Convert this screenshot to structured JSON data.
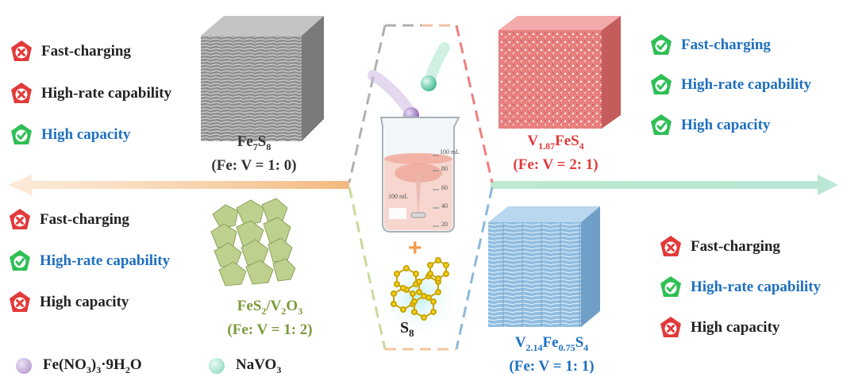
{
  "colors": {
    "fe7s8": "#9a9a9a",
    "v187": "#e97a7a",
    "fes2": "#b9cc8a",
    "v214": "#8db9dc",
    "positive_text": "#1e6fc0",
    "negative_text": "#222222",
    "check_badge": "#2fbf55",
    "cross_badge": "#e23a3a"
  },
  "panels": {
    "top_left": {
      "features": [
        {
          "icon": "cross-badge-icon",
          "text": "Fast-charging"
        },
        {
          "icon": "cross-badge-icon",
          "text": "High-rate capability"
        },
        {
          "icon": "check-badge-icon",
          "text": "High capacity"
        }
      ],
      "formula": [
        "Fe",
        "7",
        "S",
        "8"
      ],
      "ratio": "(Fe: V = 1: 0)"
    },
    "top_right": {
      "features": [
        {
          "icon": "check-badge-icon",
          "text": "Fast-charging"
        },
        {
          "icon": "check-badge-icon",
          "text": "High-rate capability"
        },
        {
          "icon": "check-badge-icon",
          "text": "High capacity"
        }
      ],
      "formula": [
        "V",
        "1.87",
        "FeS",
        "4"
      ],
      "ratio": "(Fe: V = 2: 1)"
    },
    "bottom_left": {
      "features": [
        {
          "icon": "cross-badge-icon",
          "text": "Fast-charging"
        },
        {
          "icon": "check-badge-icon",
          "text": "High-rate capability"
        },
        {
          "icon": "cross-badge-icon",
          "text": "High capacity"
        }
      ],
      "formula": [
        "FeS",
        "2",
        "/V",
        "2",
        "O",
        "3"
      ],
      "ratio": "(Fe: V = 1: 2)"
    },
    "bottom_right": {
      "features": [
        {
          "icon": "cross-badge-icon",
          "text": "Fast-charging"
        },
        {
          "icon": "check-badge-icon",
          "text": "High-rate capability"
        },
        {
          "icon": "cross-badge-icon",
          "text": "High capacity"
        }
      ],
      "formula": [
        "V",
        "2.14",
        "Fe",
        "0.75",
        "S",
        "4"
      ],
      "ratio": "(Fe: V = 1: 1)"
    }
  },
  "center": {
    "beaker_marks": [
      "100 mL",
      "80",
      "60",
      "40",
      "20"
    ],
    "beaker_side_label": "100 mL",
    "plus": "+",
    "s8": [
      "S",
      "8"
    ]
  },
  "legend": [
    {
      "color": "#a98cc4",
      "formula": [
        "Fe(NO",
        "3",
        ")",
        "3",
        "·9H",
        "2",
        "O"
      ]
    },
    {
      "color": "#7fd4b6",
      "formula": [
        "NaVO",
        "3"
      ]
    }
  ]
}
